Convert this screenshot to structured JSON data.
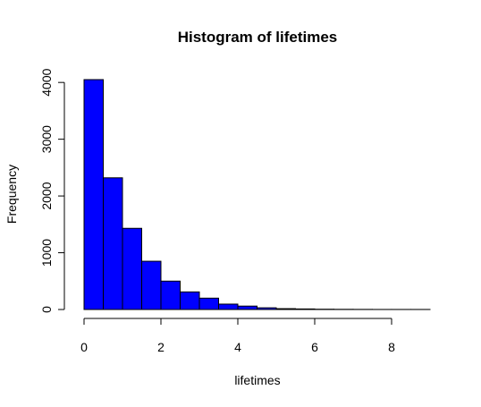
{
  "chart_data": {
    "type": "bar",
    "title": "Histogram of lifetimes",
    "xlabel": "lifetimes",
    "ylabel": "Frequency",
    "bin_width": 0.5,
    "bins": [
      {
        "x0": 0.0,
        "x1": 0.5,
        "count": 4050
      },
      {
        "x0": 0.5,
        "x1": 1.0,
        "count": 2320
      },
      {
        "x0": 1.0,
        "x1": 1.5,
        "count": 1430
      },
      {
        "x0": 1.5,
        "x1": 2.0,
        "count": 850
      },
      {
        "x0": 2.0,
        "x1": 2.5,
        "count": 500
      },
      {
        "x0": 2.5,
        "x1": 3.0,
        "count": 310
      },
      {
        "x0": 3.0,
        "x1": 3.5,
        "count": 200
      },
      {
        "x0": 3.5,
        "x1": 4.0,
        "count": 95
      },
      {
        "x0": 4.0,
        "x1": 4.5,
        "count": 60
      },
      {
        "x0": 4.5,
        "x1": 5.0,
        "count": 30
      },
      {
        "x0": 5.0,
        "x1": 5.5,
        "count": 15
      },
      {
        "x0": 5.5,
        "x1": 6.0,
        "count": 10
      },
      {
        "x0": 6.0,
        "x1": 6.5,
        "count": 5
      },
      {
        "x0": 6.5,
        "x1": 7.0,
        "count": 3
      },
      {
        "x0": 7.0,
        "x1": 7.5,
        "count": 2
      },
      {
        "x0": 7.5,
        "x1": 8.0,
        "count": 1
      },
      {
        "x0": 8.0,
        "x1": 8.5,
        "count": 1
      },
      {
        "x0": 8.5,
        "x1": 9.0,
        "count": 1
      }
    ],
    "xlim": [
      0,
      9
    ],
    "ylim": [
      0,
      4050
    ],
    "x_ticks": [
      0,
      2,
      4,
      6,
      8
    ],
    "y_ticks": [
      0,
      1000,
      2000,
      3000,
      4000
    ],
    "bar_color": "#0000FF",
    "bar_border_color": "#000000",
    "grid": false,
    "legend": "none"
  }
}
